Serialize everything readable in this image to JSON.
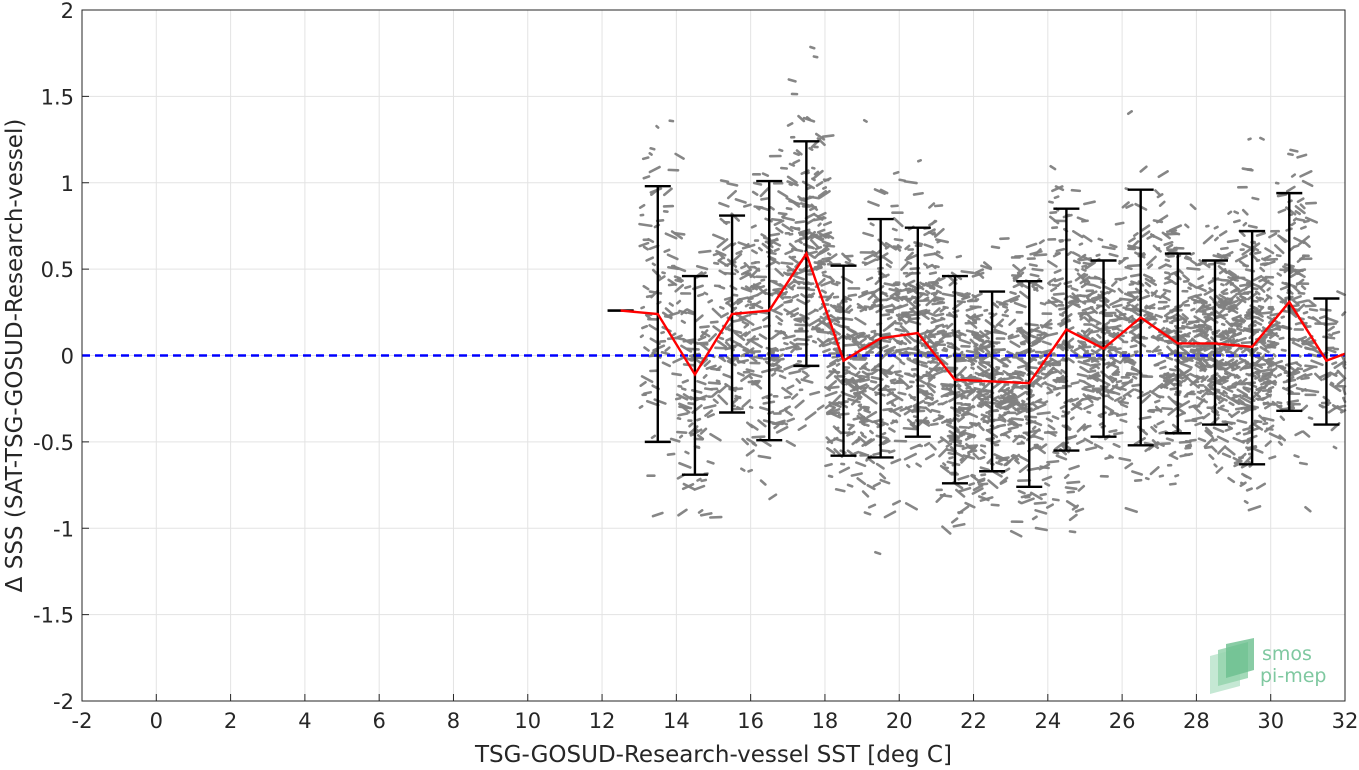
{
  "chart_data": {
    "type": "scatter",
    "xlabel": "TSG-GOSUD-Research-vessel SST [deg C]",
    "ylabel": "Δ SSS (SAT-TSG-GOSUD-Research-vessel)",
    "xlim": [
      -2,
      32
    ],
    "ylim": [
      -2,
      2
    ],
    "xticks": [
      "-2",
      "0",
      "2",
      "4",
      "6",
      "8",
      "10",
      "12",
      "14",
      "16",
      "18",
      "20",
      "22",
      "24",
      "26",
      "28",
      "30",
      "32"
    ],
    "yticks": [
      "-2",
      "-1.5",
      "-1",
      "-0.5",
      "0",
      "0.5",
      "1",
      "1.5",
      "2"
    ],
    "grid": true,
    "reference_line": {
      "y": 0,
      "color": "#0000ff",
      "style": "dashed"
    },
    "scatter_color": "#808080",
    "mean_line_color": "#ff0000",
    "errorbar_color": "#000000",
    "series": [
      {
        "kind": "errorbar-mean",
        "x": [
          12.5,
          13.5,
          14.5,
          15.5,
          16.5,
          17.5,
          18.5,
          19.5,
          20.5,
          21.5,
          22.5,
          23.5,
          24.5,
          25.5,
          26.5,
          27.5,
          28.5,
          29.5,
          30.5,
          31.5
        ],
        "mean": [
          0.26,
          0.24,
          -0.11,
          0.24,
          0.26,
          0.59,
          -0.03,
          0.1,
          0.13,
          -0.14,
          -0.15,
          -0.16,
          0.15,
          0.04,
          0.22,
          0.07,
          0.07,
          0.05,
          0.31,
          -0.03
        ],
        "upper": [
          0.26,
          0.98,
          0.46,
          0.81,
          1.01,
          1.24,
          0.52,
          0.79,
          0.74,
          0.46,
          0.37,
          0.43,
          0.85,
          0.55,
          0.96,
          0.59,
          0.55,
          0.72,
          0.94,
          0.33
        ],
        "lower": [
          0.26,
          -0.5,
          -0.69,
          -0.33,
          -0.49,
          -0.06,
          -0.58,
          -0.59,
          -0.47,
          -0.74,
          -0.67,
          -0.76,
          -0.55,
          -0.47,
          -0.52,
          -0.45,
          -0.4,
          -0.63,
          -0.32,
          -0.4
        ]
      }
    ],
    "mean_line_end": {
      "x": 32,
      "y": 0.01
    },
    "scatter_density": {
      "description_bins_x": [
        13,
        14,
        15,
        16,
        17,
        18,
        19,
        20,
        21,
        22,
        23,
        24,
        25,
        26,
        27,
        28,
        29,
        30,
        31,
        32
      ],
      "relative_density": [
        0.25,
        0.35,
        0.4,
        0.5,
        0.6,
        0.7,
        0.7,
        0.75,
        0.8,
        0.85,
        0.8,
        0.75,
        0.7,
        0.65,
        0.6,
        0.8,
        1.0,
        1.0,
        0.6,
        0.2
      ]
    }
  },
  "logo": {
    "line1": "smos",
    "line2": "pi-mep"
  }
}
